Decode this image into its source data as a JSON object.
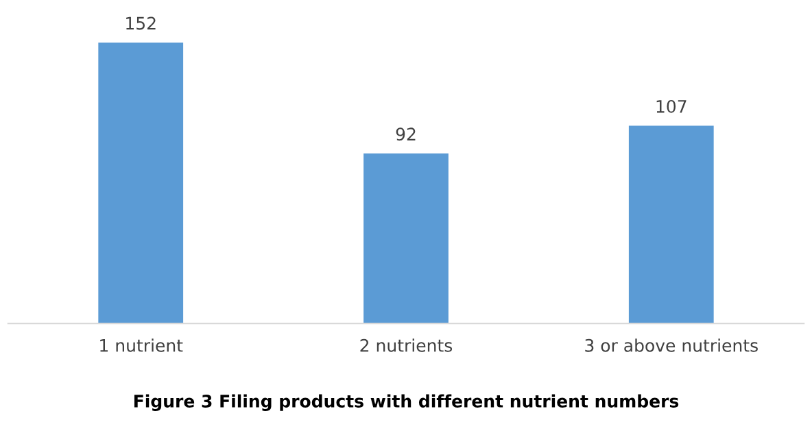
{
  "chart_data": {
    "type": "bar",
    "title": "Figure 3 Filing products with different nutrient numbers",
    "categories": [
      "1 nutrient",
      "2 nutrients",
      "3 or above nutrients"
    ],
    "values": [
      152,
      92,
      107
    ],
    "color": "#5b9bd5",
    "data_labels": true,
    "grid": false,
    "legend": false,
    "tick_labels": "x"
  }
}
